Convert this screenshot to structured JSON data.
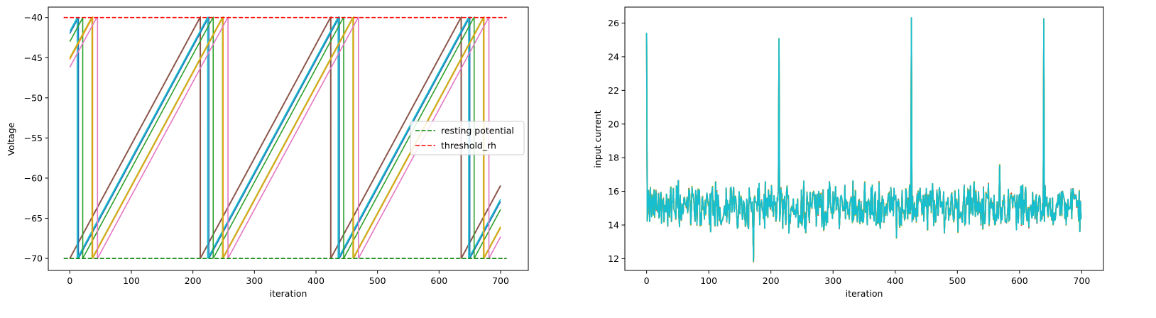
{
  "chart_data": [
    {
      "type": "line",
      "xlabel": "iteration",
      "ylabel": "Voltage",
      "xlim": [
        -35,
        745
      ],
      "ylim": [
        -71.5,
        -38.7
      ],
      "xticks": [
        "0",
        "100",
        "200",
        "300",
        "400",
        "500",
        "600",
        "700"
      ],
      "yticks": [
        "-40",
        "-45",
        "-50",
        "-55",
        "-60",
        "-65",
        "-70"
      ],
      "xtick_values": [
        0,
        100,
        200,
        300,
        400,
        500,
        600,
        700
      ],
      "ytick_values": [
        -40,
        -45,
        -50,
        -55,
        -60,
        -65,
        -70
      ],
      "grid": false,
      "legend_position": "center-right",
      "reference_lines": [
        {
          "name": "resting potential",
          "y": -70,
          "x_range": [
            -10,
            710
          ],
          "color": "#008000",
          "dash": "dashed"
        },
        {
          "name": "threshold_rh",
          "y": -40,
          "x_range": [
            -10,
            710
          ],
          "color": "#ff0000",
          "dash": "dashed"
        }
      ],
      "series": [
        {
          "color": "#8c564b",
          "start_v": -70.0,
          "slope": 0.1418,
          "spike_x": [
            212,
            424,
            636
          ]
        },
        {
          "color": "#1f77b4",
          "start_v": -42.0,
          "slope": 0.1418,
          "spike_x": [
            14
          ]
        },
        {
          "color": "#17becf",
          "start_v": -41.7,
          "slope": 0.1418,
          "spike_x": [
            12
          ]
        },
        {
          "color": "#2ca02c",
          "start_v": -43.0,
          "slope": 0.1418,
          "spike_x": [
            21
          ]
        },
        {
          "color": "#ff7f0e",
          "start_v": -45.2,
          "slope": 0.1418,
          "spike_x": [
            37
          ]
        },
        {
          "color": "#bcbd22",
          "start_v": -45.0,
          "slope": 0.1418,
          "spike_x": [
            36
          ]
        },
        {
          "color": "#e377c2",
          "start_v": -46.2,
          "slope": 0.1418,
          "spike_x": [
            45
          ]
        }
      ]
    },
    {
      "type": "line",
      "xlabel": "iteration",
      "ylabel": "input current",
      "xlim": [
        -35,
        735
      ],
      "ylim": [
        11.3,
        26.95
      ],
      "xticks": [
        "0",
        "100",
        "200",
        "300",
        "400",
        "500",
        "600",
        "700"
      ],
      "yticks": [
        "12",
        "14",
        "16",
        "18",
        "20",
        "22",
        "24",
        "26"
      ],
      "xtick_values": [
        0,
        100,
        200,
        300,
        400,
        500,
        600,
        700
      ],
      "ytick_values": [
        12,
        14,
        16,
        18,
        20,
        22,
        24,
        26
      ],
      "grid": false,
      "n_points": 700,
      "baseline_mean": 15.1,
      "noise_range": [
        12.6,
        17.6
      ],
      "min_point": {
        "x": 172,
        "y": 11.8
      },
      "spikes": [
        {
          "x": 0,
          "y": 25.4
        },
        {
          "x": 213,
          "y": 25.1
        },
        {
          "x": 426,
          "y": 26.3
        },
        {
          "x": 639,
          "y": 26.25
        }
      ],
      "series_colors": [
        "#d62728",
        "#ff7f0e",
        "#2ca02c",
        "#bcbd22",
        "#17becf"
      ]
    }
  ],
  "legend": {
    "items": [
      {
        "label": "resting potential",
        "color": "#008000"
      },
      {
        "label": "threshold_rh",
        "color": "#ff0000"
      }
    ]
  }
}
